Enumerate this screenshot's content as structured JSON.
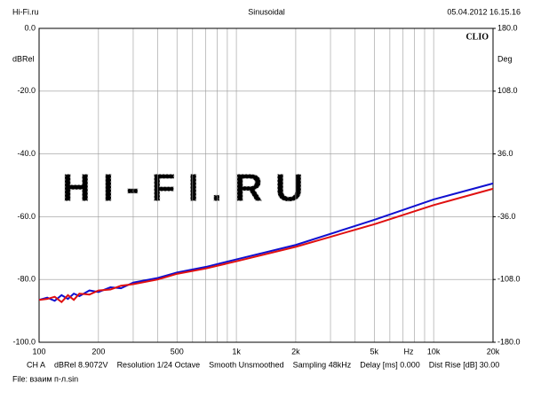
{
  "chart_data": {
    "type": "line",
    "header_left": "Hi-Fi.ru",
    "title": "Sinusoidal",
    "header_right": "05.04.2012 16.15.16",
    "brand": "CLIO",
    "watermark": "HI-FI.RU",
    "ylabel": "dBRel",
    "y2label": "Deg",
    "xlabel": "Hz",
    "xlog": true,
    "grid": true,
    "xlim": [
      100,
      20000
    ],
    "xticks": [
      100,
      200,
      500,
      {
        "value": 1000,
        "label": "1k"
      },
      {
        "value": 2000,
        "label": "2k"
      },
      {
        "value": 5000,
        "label": "5k"
      },
      {
        "value": 10000,
        "label": "10k"
      },
      {
        "value": 20000,
        "label": "20k"
      }
    ],
    "xgrid": [
      300,
      400,
      600,
      700,
      800,
      900,
      3000,
      4000,
      6000,
      7000,
      8000,
      9000
    ],
    "ylim": [
      -100,
      0
    ],
    "yticks": [
      {
        "value": 0,
        "label": "0.0"
      },
      {
        "value": -20,
        "label": "-20.0"
      },
      {
        "value": -40,
        "label": "-40.0"
      },
      {
        "value": -60,
        "label": "-60.0"
      },
      {
        "value": -80,
        "label": "-80.0"
      },
      {
        "value": -100,
        "label": "-100.0"
      }
    ],
    "y2lim": [
      -180,
      180
    ],
    "y2ticks": [
      {
        "value": 180,
        "label": "180.0"
      },
      {
        "value": 108,
        "label": "108.0"
      },
      {
        "value": 36,
        "label": "36.0"
      },
      {
        "value": -36,
        "label": "-36.0"
      },
      {
        "value": -108,
        "label": "-108.0"
      },
      {
        "value": -180,
        "label": "-180.0"
      }
    ],
    "x": [
      100,
      110,
      120,
      130,
      140,
      150,
      160,
      180,
      200,
      230,
      260,
      300,
      400,
      500,
      700,
      1000,
      2000,
      5000,
      10000,
      20000
    ],
    "series": [
      {
        "color": "#1010d0",
        "values": [
          -86.5,
          -85.8,
          -86.8,
          -85,
          -86.2,
          -84.5,
          -85.3,
          -83.5,
          -84,
          -82.5,
          -82.8,
          -81,
          -79.5,
          -77.8,
          -76,
          -73.6,
          -69,
          -61,
          -54.5,
          -49.4
        ]
      },
      {
        "color": "#e01010",
        "values": [
          -86.5,
          -86.2,
          -85.5,
          -87.2,
          -85,
          -86.5,
          -84.5,
          -84.8,
          -83.5,
          -83.2,
          -82,
          -81.5,
          -80,
          -78.2,
          -76.5,
          -74.2,
          -69.6,
          -62.4,
          -56.3,
          -51.1
        ]
      }
    ],
    "footer": [
      "CH A",
      "dBRel 8.9072V",
      "Resolution 1/24 Octave",
      "Smooth Unsmoothed",
      "Sampling 48kHz",
      "Delay [ms] 0.000",
      "Dist Rise [dB] 30.00"
    ],
    "file": "File: взаим п-л.sin"
  }
}
